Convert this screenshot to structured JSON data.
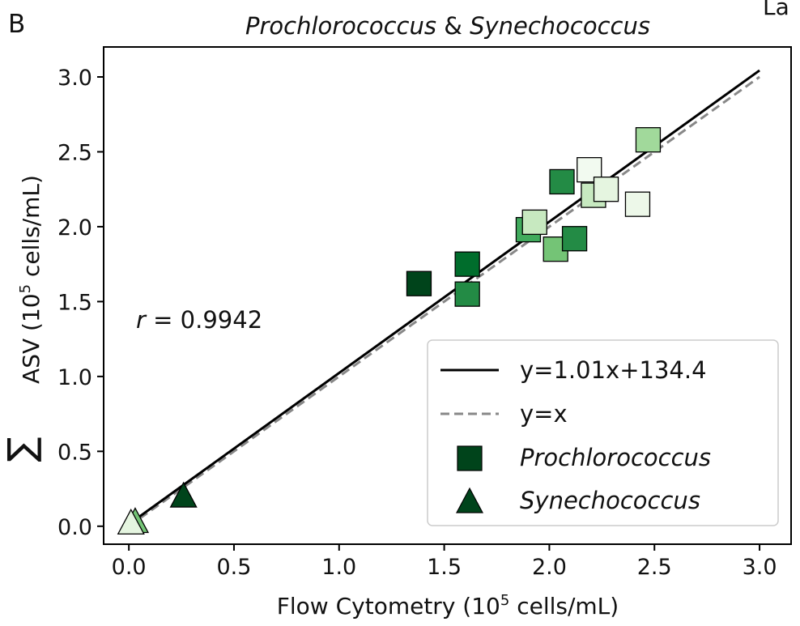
{
  "panel_label": "B",
  "corner_fragment": "La",
  "chart_data": {
    "type": "scatter",
    "title_part1": "Prochlorococcus",
    "title_sep": " & ",
    "title_part2": "Synechococcus",
    "xlabel_prefix": "Flow Cytometry (10",
    "xlabel_sup": "5",
    "xlabel_suffix": " cells/mL)",
    "ylabel_sigma": "∑",
    "ylabel_prefix": "ASV (10",
    "ylabel_sup": "5",
    "ylabel_suffix": " cells/mL)",
    "xlim": [
      -0.12,
      3.15
    ],
    "ylim": [
      -0.12,
      3.2
    ],
    "xticks": [
      0.0,
      0.5,
      1.0,
      1.5,
      2.0,
      2.5,
      3.0
    ],
    "yticks": [
      0.0,
      0.5,
      1.0,
      1.5,
      2.0,
      2.5,
      3.0
    ],
    "xtick_labels": [
      "0.0",
      "0.5",
      "1.0",
      "1.5",
      "2.0",
      "2.5",
      "3.0"
    ],
    "ytick_labels": [
      "0.0",
      "0.5",
      "1.0",
      "1.5",
      "2.0",
      "2.5",
      "3.0"
    ],
    "annotation_r": "r",
    "annotation_value": " = 0.9942",
    "lines": [
      {
        "name": "y=1.01x+134.4",
        "slope": 1.01,
        "intercept": 0.01344,
        "color": "#000000",
        "dash": "solid"
      },
      {
        "name": "y=x",
        "slope": 1.0,
        "intercept": 0.0,
        "color": "#888888",
        "dash": "dashed"
      }
    ],
    "series": [
      {
        "name": "Prochlorococcus",
        "marker": "square",
        "legend_color": "#00441b",
        "points": [
          {
            "x": 1.38,
            "y": 1.62,
            "color": "#00441b"
          },
          {
            "x": 1.61,
            "y": 1.75,
            "color": "#006d2c"
          },
          {
            "x": 1.61,
            "y": 1.55,
            "color": "#238b45"
          },
          {
            "x": 1.9,
            "y": 1.98,
            "color": "#41ab5d"
          },
          {
            "x": 1.93,
            "y": 2.03,
            "color": "#c7e9c0"
          },
          {
            "x": 2.03,
            "y": 1.85,
            "color": "#74c476"
          },
          {
            "x": 2.06,
            "y": 2.3,
            "color": "#238b45"
          },
          {
            "x": 2.12,
            "y": 1.92,
            "color": "#238b45"
          },
          {
            "x": 2.19,
            "y": 2.38,
            "color": "#f2faf0"
          },
          {
            "x": 2.21,
            "y": 2.21,
            "color": "#c7e9c0"
          },
          {
            "x": 2.27,
            "y": 2.25,
            "color": "#e5f5e0"
          },
          {
            "x": 2.42,
            "y": 2.15,
            "color": "#edf8e9"
          },
          {
            "x": 2.47,
            "y": 2.58,
            "color": "#a1d99b"
          }
        ]
      },
      {
        "name": "Synechococcus",
        "marker": "triangle",
        "legend_color": "#00441b",
        "points": [
          {
            "x": 0.03,
            "y": 0.02,
            "color": "#74c476"
          },
          {
            "x": 0.01,
            "y": 0.01,
            "color": "#e5f5e0"
          },
          {
            "x": 0.26,
            "y": 0.19,
            "color": "#00441b"
          }
        ]
      }
    ]
  }
}
